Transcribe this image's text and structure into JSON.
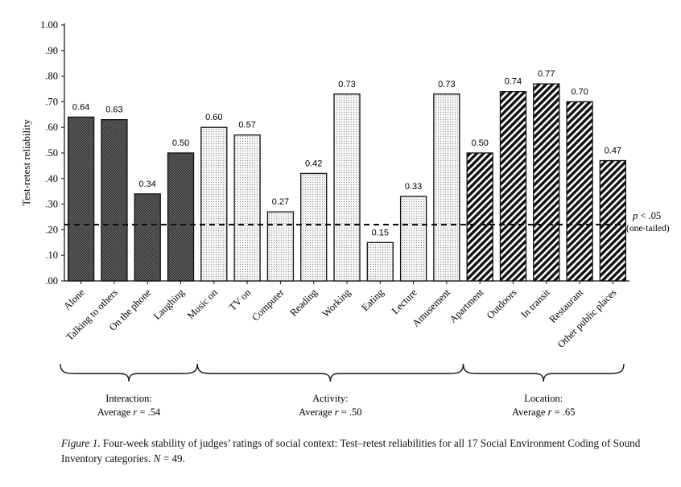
{
  "chart_data": {
    "type": "bar",
    "ylabel": "Test-retest reliability",
    "ylim": [
      0,
      1
    ],
    "yticks": [
      ".00",
      ".10",
      ".20",
      ".30",
      ".40",
      ".50",
      ".60",
      ".70",
      ".80",
      ".90",
      "1.00"
    ],
    "categories": [
      "Alone",
      "Talking to others",
      "On the phone",
      "Laughing",
      "Music on",
      "TV on",
      "Computer",
      "Reading",
      "Working",
      "Eating",
      "Lecture",
      "Amusement",
      "Apartment",
      "Outdoors",
      "In transit",
      "Restaurant",
      "Other public places"
    ],
    "values": [
      0.64,
      0.63,
      0.34,
      0.5,
      0.6,
      0.57,
      0.27,
      0.42,
      0.73,
      0.15,
      0.33,
      0.73,
      0.5,
      0.74,
      0.77,
      0.7,
      0.47
    ],
    "value_labels": [
      "0.64",
      "0.63",
      "0.34",
      "0.50",
      "0.60",
      "0.57",
      "0.27",
      "0.42",
      "0.73",
      "0.15",
      "0.33",
      "0.73",
      "0.50",
      "0.74",
      "0.77",
      "0.70",
      "0.47"
    ],
    "groups": [
      {
        "name": "Interaction:",
        "average_label": "Average",
        "r": "r",
        "average_value": "= .54",
        "start": 0,
        "end": 3,
        "fill": "crosshatch-dark"
      },
      {
        "name": "Activity:",
        "average_label": "Average",
        "r": "r",
        "average_value": "= .50",
        "start": 4,
        "end": 11,
        "fill": "dotted-light"
      },
      {
        "name": "Location:",
        "average_label": "Average",
        "r": "r",
        "average_value": "= .65",
        "start": 12,
        "end": 16,
        "fill": "diagonal-stripes"
      }
    ],
    "threshold": {
      "value": 0.22,
      "label_p": "p",
      "label_rest": "< .05",
      "label_sub": "(one-tailed)"
    }
  },
  "caption": {
    "figure_label": "Figure 1",
    "text_1": ". Four-week stability of judges’ ratings of social context: Test–retest reliabilities for all 17 Social Environment Coding of Sound Inventory categories.",
    "n_var": "N",
    "text_2": " = 49."
  }
}
